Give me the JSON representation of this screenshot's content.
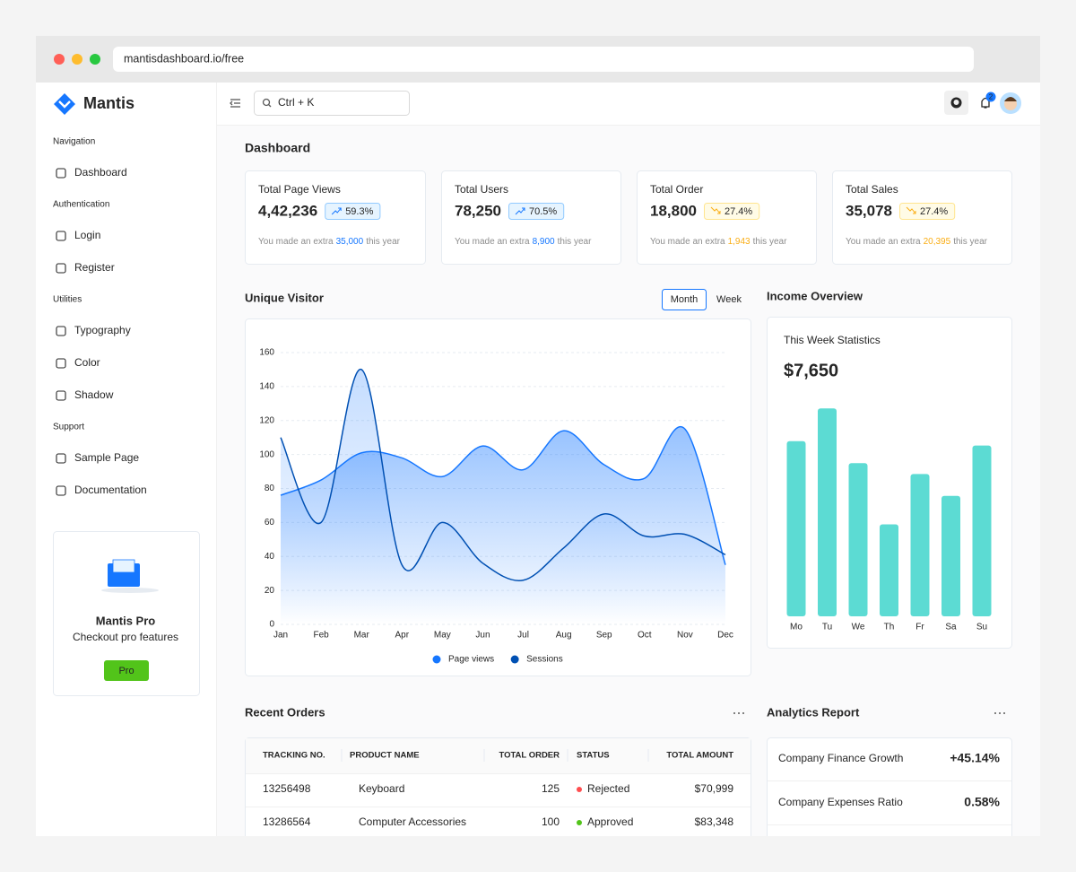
{
  "browser": {
    "url": "mantisdashboard.io/free"
  },
  "sidebar": {
    "brand": "Mantis",
    "sections": [
      {
        "title": "Navigation",
        "items": [
          "Dashboard"
        ]
      },
      {
        "title": "Authentication",
        "items": [
          "Login",
          "Register"
        ]
      },
      {
        "title": "Utilities",
        "items": [
          "Typography",
          "Color",
          "Shadow"
        ]
      },
      {
        "title": "Support",
        "items": [
          "Sample Page",
          "Documentation"
        ]
      }
    ],
    "promo": {
      "title": "Mantis Pro",
      "subtitle": "Checkout pro features",
      "button": "Pro"
    }
  },
  "header": {
    "search_placeholder": "Ctrl + K",
    "notifications": 2
  },
  "page_title": "Dashboard",
  "stats": [
    {
      "title": "Total Page Views",
      "value": "4,42,236",
      "change": "59.3%",
      "color": "#1677ff",
      "note": [
        "You made an extra",
        "35,000",
        "this year"
      ]
    },
    {
      "title": "Total Users",
      "value": "78,250",
      "change": "70.5%",
      "color": "#1677ff",
      "note": [
        "You made an extra",
        "8,900",
        "this year"
      ]
    },
    {
      "title": "Total Order",
      "value": "18,800",
      "change": "27.4%",
      "color": "#faad14",
      "note": [
        "You made an extra",
        "1,943",
        "this year"
      ]
    },
    {
      "title": "Total Sales",
      "value": "35,078",
      "change": "27.4%",
      "color": "#faad14",
      "note": [
        "You made an extra",
        "20,395",
        "this year"
      ]
    }
  ],
  "chart_data": [
    {
      "type": "area",
      "title": "Unique Visitor",
      "toggle": [
        "Month",
        "Week"
      ],
      "categories": [
        "Jan",
        "Feb",
        "Mar",
        "Apr",
        "May",
        "Jun",
        "Jul",
        "Aug",
        "Sep",
        "Oct",
        "Nov",
        "Dec"
      ],
      "series": [
        {
          "name": "Page views",
          "color": "#1677ff",
          "values": [
            76,
            85,
            101,
            98,
            87,
            105,
            91,
            114,
            94,
            86,
            115,
            35
          ]
        },
        {
          "name": "Sessions",
          "color": "#0050b3",
          "values": [
            110,
            60,
            150,
            35,
            60,
            36,
            26,
            45,
            65,
            52,
            53,
            41
          ]
        }
      ],
      "ylim": [
        0,
        160
      ],
      "yticks": [
        0,
        20,
        40,
        60,
        80,
        100,
        120,
        140,
        160
      ],
      "grid": true,
      "legend": "bottom"
    },
    {
      "type": "bar",
      "title": "Income Overview",
      "subtitle": "This Week Statistics",
      "total": "$7,650",
      "categories": [
        "Mo",
        "Tu",
        "We",
        "Th",
        "Fr",
        "Sa",
        "Su"
      ],
      "values": [
        80,
        95,
        70,
        42,
        65,
        55,
        78
      ],
      "color": "#5cdbd3",
      "ylim": [
        0,
        100
      ]
    }
  ],
  "orders": {
    "title": "Recent Orders",
    "columns": [
      "TRACKING NO.",
      "PRODUCT NAME",
      "TOTAL ORDER",
      "STATUS",
      "TOTAL AMOUNT"
    ],
    "rows": [
      [
        "13256498",
        "Keyboard",
        "125",
        "Rejected",
        "$70,999"
      ],
      [
        "13286564",
        "Computer Accessories",
        "100",
        "Approved",
        "$83,348"
      ]
    ],
    "status_colors": [
      "#ff4d4f",
      "#52c41a"
    ]
  },
  "analytics": {
    "title": "Analytics Report",
    "rows": [
      {
        "label": "Company Finance Growth",
        "value": "+45.14%"
      },
      {
        "label": "Company Expenses Ratio",
        "value": "0.58%"
      }
    ]
  }
}
